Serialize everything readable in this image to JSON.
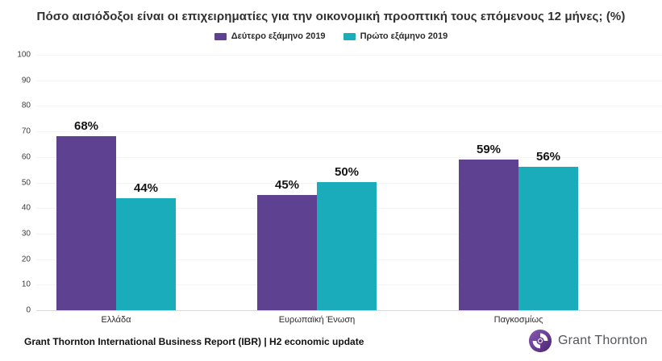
{
  "title": "Πόσο αισιόδοξοι είναι οι επιχειρηματίες για την οικονομική προοπτική τους επόμενους 12 μήνες; (%)",
  "legend": [
    {
      "label": "Δεύτερο εξάμηνο 2019",
      "color": "#5e4190"
    },
    {
      "label": "Πρώτο εξάμηνο 2019",
      "color": "#1aacba"
    }
  ],
  "chart_data": {
    "type": "bar",
    "title": "Πόσο αισιόδοξοι είναι οι επιχειρηματίες για την οικονομική προοπτική τους επόμενους 12 μήνες; (%)",
    "categories": [
      "Ελλάδα",
      "Ευρωπαϊκή Ένωση",
      "Παγκοσμίως"
    ],
    "series": [
      {
        "name": "Δεύτερο εξάμηνο 2019",
        "color": "#5e4190",
        "values": [
          68,
          45,
          59
        ]
      },
      {
        "name": "Πρώτο εξάμηνο 2019",
        "color": "#1aacba",
        "values": [
          44,
          50,
          56
        ]
      }
    ],
    "value_label_suffix": "%",
    "xlabel": "",
    "ylabel": "",
    "ylim": [
      0,
      100
    ],
    "yticks": [
      0,
      10,
      20,
      30,
      40,
      50,
      60,
      70,
      80,
      90,
      100
    ],
    "grid": true,
    "gridline_color": "#f4f4f4",
    "baseline_color": "#d9d9d9",
    "legend_position": "top"
  },
  "footer": {
    "source": "Grant Thornton International Business Report (IBR) | H2 economic update"
  },
  "logo": {
    "text": "Grant Thornton",
    "icon_color": "#5b2d86"
  }
}
